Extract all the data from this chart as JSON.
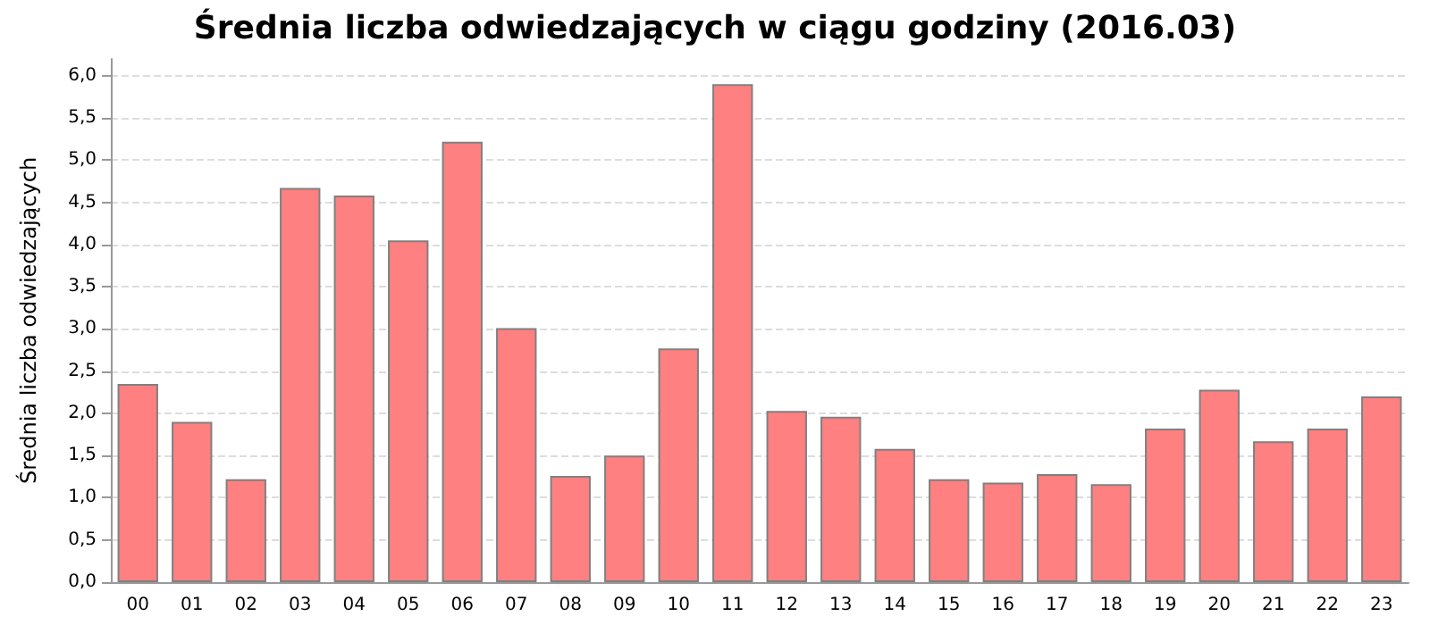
{
  "chart_data": {
    "type": "bar",
    "title": "Średnia liczba odwiedzających w ciągu godziny (2016.03)",
    "ylabel": "Średnia liczba odwiedzających",
    "categories": [
      "00",
      "01",
      "02",
      "03",
      "04",
      "05",
      "06",
      "07",
      "08",
      "09",
      "10",
      "11",
      "12",
      "13",
      "14",
      "15",
      "16",
      "17",
      "18",
      "19",
      "20",
      "21",
      "22",
      "23"
    ],
    "values": [
      2.35,
      1.9,
      1.22,
      4.67,
      4.58,
      4.05,
      5.22,
      3.01,
      1.26,
      1.5,
      2.77,
      5.9,
      2.03,
      1.96,
      1.58,
      1.22,
      1.18,
      1.28,
      1.16,
      1.82,
      2.28,
      1.67,
      1.82,
      2.2
    ],
    "color": "#ff8080",
    "ylim": [
      0,
      6.2
    ],
    "yticks": [
      {
        "value": 0,
        "label": "0,0"
      },
      {
        "value": 0.5,
        "label": "0,5"
      },
      {
        "value": 1,
        "label": "1,0"
      },
      {
        "value": 1.5,
        "label": "1,5"
      },
      {
        "value": 2,
        "label": "2,0"
      },
      {
        "value": 2.5,
        "label": "2,5"
      },
      {
        "value": 3,
        "label": "3,0"
      },
      {
        "value": 3.5,
        "label": "3,5"
      },
      {
        "value": 4,
        "label": "4,0"
      },
      {
        "value": 4.5,
        "label": "4,5"
      },
      {
        "value": 5,
        "label": "5,0"
      },
      {
        "value": 5.5,
        "label": "5,5"
      },
      {
        "value": 6,
        "label": "6,0"
      }
    ],
    "grid": "y"
  }
}
